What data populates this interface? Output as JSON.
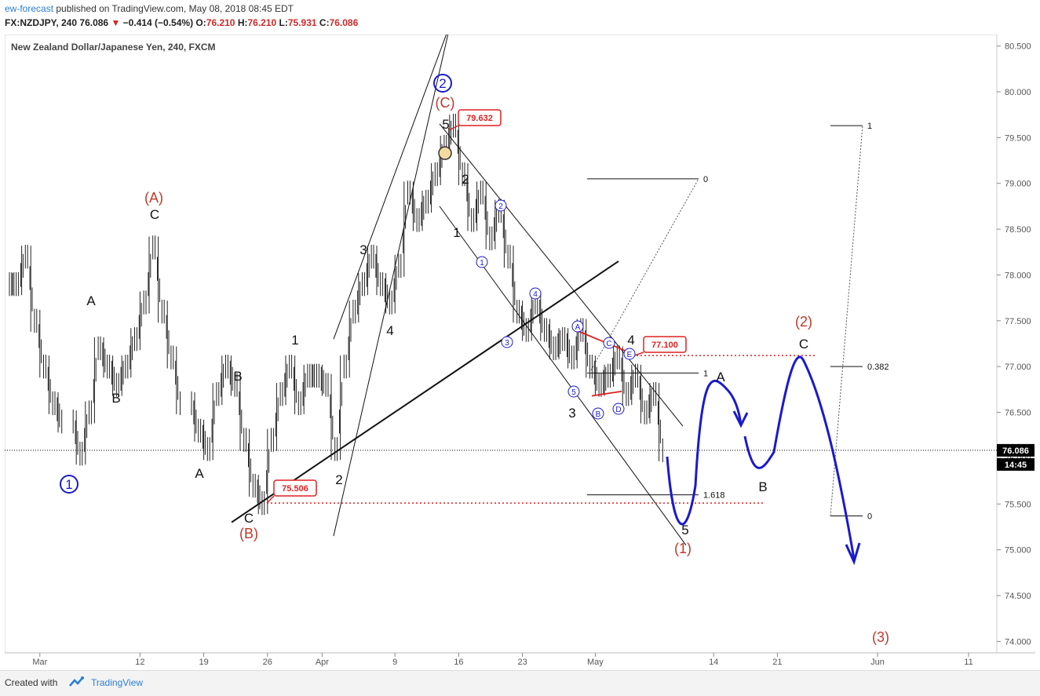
{
  "header": {
    "author": "ew-forecast",
    "published": "published on TradingView.com, May 08, 2018 08:45 EDT",
    "symbol": "FX:NZDJPY, 240",
    "last": "76.086",
    "change": "−0.414 (−0.54%)",
    "o_label": "O:",
    "o": "76.210",
    "h_label": "H:",
    "h": "76.210",
    "l_label": "L:",
    "l": "75.931",
    "c_label": "C:",
    "c": "76.086"
  },
  "footer": {
    "created_with": "Created with",
    "brand": "TradingView"
  },
  "colors": {
    "up_arrow": "#cc2a2a",
    "blue": "#1a1acc",
    "red": "#c0392b",
    "axis_text": "#555555",
    "grid_dot": "#000000"
  },
  "chart_data": {
    "type": "line",
    "title": "New Zealand Dollar/Japanese Yen, 240, FXCM",
    "ylim": [
      73.875,
      80.625
    ],
    "y_ticks": [
      "80.500",
      "80.000",
      "79.500",
      "79.000",
      "78.500",
      "78.000",
      "77.500",
      "77.000",
      "76.500",
      "76.000",
      "75.500",
      "75.000",
      "74.500",
      "74.000"
    ],
    "x_ticks": [
      "Mar",
      "12",
      "19",
      "26",
      "Apr",
      "9",
      "16",
      "23",
      "May",
      "14",
      "21",
      "Jun",
      "11"
    ],
    "price_label": "76.086",
    "countdown": "14:45",
    "series": [
      {
        "points": [
          [
            "Feb 26",
            77.9
          ],
          [
            "Feb 27",
            78.2
          ],
          [
            "Feb 28",
            77.5
          ],
          [
            "Mar 1",
            77.0
          ],
          [
            "Mar 2",
            76.6
          ],
          [
            "Mar 3",
            76.4
          ],
          [
            "Mar 5",
            76.05
          ],
          [
            "Mar 6",
            76.5
          ],
          [
            "Mar 7",
            77.2
          ],
          [
            "Mar 8",
            77.0
          ],
          [
            "Mar 9",
            76.8
          ],
          [
            "Mar 10",
            77.0
          ],
          [
            "Mar 11",
            77.3
          ],
          [
            "Mar 12",
            77.7
          ],
          [
            "Mar 13",
            78.3
          ],
          [
            "Mar 14",
            77.6
          ],
          [
            "Mar 15",
            77.1
          ],
          [
            "Mar 16",
            76.6
          ],
          [
            "Mar 18",
            76.3
          ],
          [
            "Mar 19",
            76.1
          ],
          [
            "Mar 20",
            76.7
          ],
          [
            "Mar 21",
            77.0
          ],
          [
            "Mar 22",
            76.8
          ],
          [
            "Mar 23",
            76.2
          ],
          [
            "Mar 24",
            75.7
          ],
          [
            "Mar 25",
            75.51
          ],
          [
            "Mar 26",
            76.2
          ],
          [
            "Mar 27",
            76.7
          ],
          [
            "Mar 28",
            77.0
          ],
          [
            "Mar 29",
            76.6
          ],
          [
            "Mar 30",
            76.9
          ],
          [
            "Mar 31",
            76.9
          ],
          [
            "Apr 1",
            76.8
          ],
          [
            "Apr 2",
            76.1
          ],
          [
            "Apr 3",
            77.0
          ],
          [
            "Apr 4",
            77.6
          ],
          [
            "Apr 5",
            77.9
          ],
          [
            "Apr 6",
            78.2
          ],
          [
            "Apr 7",
            77.9
          ],
          [
            "Apr 8",
            77.7
          ],
          [
            "Apr 9",
            78.1
          ],
          [
            "Apr 10",
            78.9
          ],
          [
            "Apr 11",
            78.6
          ],
          [
            "Apr 12",
            78.8
          ],
          [
            "Apr 13",
            79.1
          ],
          [
            "Apr 14",
            79.4
          ],
          [
            "Apr 15",
            79.63
          ],
          [
            "Apr 16",
            79.1
          ],
          [
            "Apr 17",
            78.6
          ],
          [
            "Apr 18",
            78.9
          ],
          [
            "Apr 19",
            78.4
          ],
          [
            "Apr 20",
            78.7
          ],
          [
            "Apr 21",
            78.2
          ],
          [
            "Apr 22",
            77.6
          ],
          [
            "Apr 23",
            77.4
          ],
          [
            "Apr 24",
            77.7
          ],
          [
            "Apr 25",
            77.4
          ],
          [
            "Apr 26",
            77.2
          ],
          [
            "Apr 27",
            77.3
          ],
          [
            "Apr 28",
            77.1
          ],
          [
            "Apr 29",
            77.4
          ],
          [
            "Apr 30",
            77.0
          ],
          [
            "May 1",
            76.8
          ],
          [
            "May 2",
            76.9
          ],
          [
            "May 3",
            77.1
          ],
          [
            "May 4",
            76.7
          ],
          [
            "May 5",
            76.9
          ],
          [
            "May 6",
            76.5
          ],
          [
            "May 7",
            76.7
          ],
          [
            "May 8",
            76.086
          ]
        ]
      }
    ],
    "levels": {
      "high": "79.632",
      "low": "75.506",
      "resistance": "77.100"
    },
    "fib": [
      "0",
      "1",
      "1.618",
      "1",
      "0.382",
      "0"
    ],
    "wave_labels": {
      "circle1": "1",
      "circle2": "2",
      "A_red": "(A)",
      "B_red": "(B)",
      "C_red": "(C)",
      "w1_red": "(1)",
      "w2_red": "(2)",
      "w3_red": "(3)"
    },
    "black_labels": [
      "A",
      "B",
      "A",
      "C",
      "B",
      "C",
      "C",
      "1",
      "2",
      "3",
      "4",
      "5",
      "1",
      "2",
      "3",
      "4",
      "5",
      "A",
      "B",
      "C"
    ],
    "small_circle_labels": [
      "1",
      "2",
      "3",
      "4",
      "5",
      "A",
      "B",
      "C",
      "D",
      "E"
    ]
  }
}
